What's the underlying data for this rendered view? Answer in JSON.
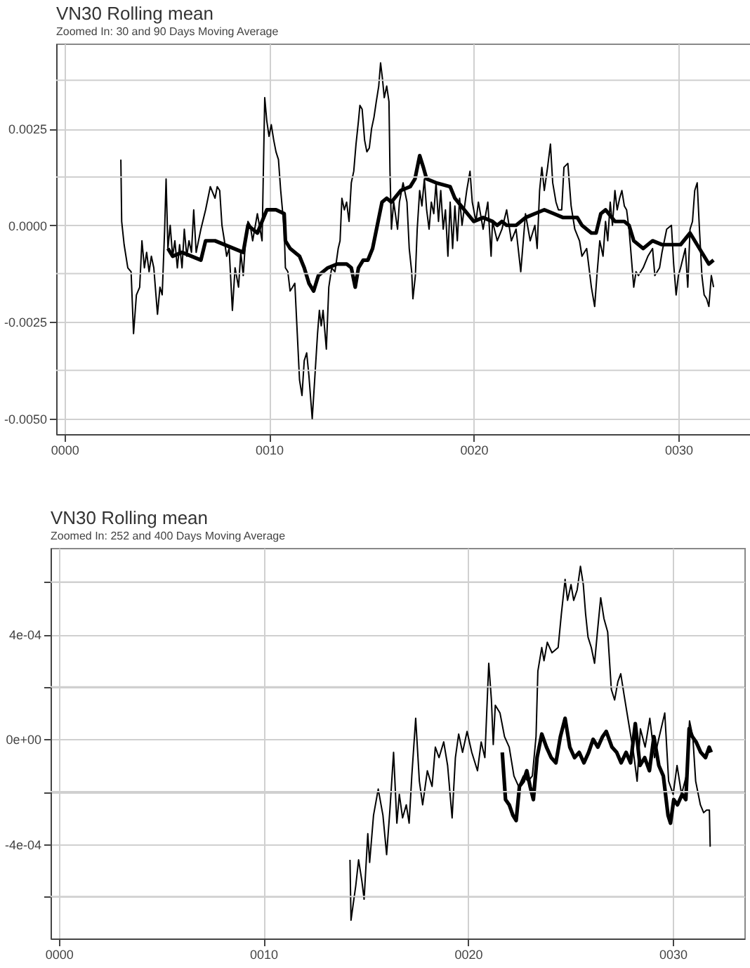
{
  "chart_data": [
    {
      "type": "line",
      "title": "VN30 Rolling mean",
      "subtitle": "Zoomed In: 30 and 90 Days Moving Average",
      "xlim": [
        -0.4,
        33.5
      ],
      "xticks": [
        {
          "value": 0,
          "label": "0000"
        },
        {
          "value": 10,
          "label": "0010"
        },
        {
          "value": 20,
          "label": "0020"
        },
        {
          "value": 30,
          "label": "0030"
        }
      ],
      "ylim": [
        -0.0054,
        0.0047
      ],
      "yticks": [
        {
          "value": -0.005,
          "label": "-0.0050"
        },
        {
          "value": -0.00375,
          "label": null
        },
        {
          "value": -0.0025,
          "label": "-0.0025"
        },
        {
          "value": -0.00125,
          "label": null
        },
        {
          "value": 0,
          "label": "0.0000"
        },
        {
          "value": 0.00125,
          "label": null
        },
        {
          "value": 0.0025,
          "label": "0.0025"
        },
        {
          "value": 0.00375,
          "label": null
        }
      ],
      "grid": true,
      "series": [
        {
          "color": "#000000",
          "x": [
            2.76,
            2.8,
            2.92,
            3.1,
            3.26,
            3.38,
            3.52,
            3.68,
            3.79,
            3.91,
            4.02,
            4.14,
            4.25,
            4.37,
            4.55,
            4.67,
            4.78,
            4.9,
            4.97,
            5.06,
            5.17,
            5.29,
            5.4,
            5.52,
            5.63,
            5.75,
            5.86,
            5.98,
            6.09,
            6.21,
            6.32,
            6.44,
            6.67,
            6.9,
            7.13,
            7.36,
            7.47,
            7.59,
            7.7,
            7.82,
            7.93,
            8.05,
            8.21,
            8.34,
            8.51,
            8.62,
            8.74,
            8.85,
            8.97,
            9.08,
            9.2,
            9.43,
            9.66,
            9.79,
            9.89,
            10.0,
            10.11,
            10.23,
            10.34,
            10.46,
            10.57,
            10.74,
            10.8,
            10.92,
            11.03,
            11.15,
            11.26,
            11.38,
            11.49,
            11.61,
            11.72,
            11.84,
            11.95,
            12.11,
            12.23,
            12.37,
            12.46,
            12.55,
            12.64,
            12.8,
            12.92,
            13.06,
            13.22,
            13.38,
            13.47,
            13.56,
            13.68,
            13.79,
            13.91,
            14.02,
            14.14,
            14.25,
            14.37,
            14.44,
            14.55,
            14.67,
            14.78,
            14.9,
            15.01,
            15.13,
            15.24,
            15.36,
            15.45,
            15.54,
            15.63,
            15.75,
            15.86,
            15.91,
            15.98,
            16.09,
            16.28,
            16.37,
            16.55,
            16.74,
            16.85,
            16.97,
            17.03,
            17.15,
            17.24,
            17.36,
            17.47,
            17.59,
            17.7,
            17.82,
            17.93,
            18.05,
            18.16,
            18.28,
            18.39,
            18.51,
            18.62,
            18.74,
            18.85,
            18.97,
            19.08,
            19.2,
            19.31,
            19.43,
            19.66,
            19.82,
            19.93,
            20.11,
            20.23,
            20.46,
            20.69,
            20.85,
            20.92,
            21.15,
            21.38,
            21.61,
            21.84,
            22.07,
            22.3,
            22.53,
            22.76,
            22.99,
            23.1,
            23.22,
            23.33,
            23.45,
            23.61,
            23.75,
            23.86,
            24.02,
            24.14,
            24.3,
            24.41,
            24.6,
            24.76,
            24.94,
            25.17,
            25.29,
            25.52,
            25.75,
            25.91,
            26.02,
            26.16,
            26.32,
            26.44,
            26.55,
            26.67,
            26.78,
            26.9,
            27.01,
            27.13,
            27.24,
            27.36,
            27.47,
            27.59,
            27.82,
            27.93,
            28.05,
            28.28,
            28.51,
            28.74,
            28.85,
            29.08,
            29.2,
            29.43,
            29.66,
            29.77,
            29.89,
            30.0,
            30.11,
            30.34,
            30.46,
            30.57,
            30.69,
            30.8,
            30.92,
            31.03,
            31.15,
            31.26,
            31.38,
            31.49,
            31.61,
            31.72
          ],
          "values": [
            0.0017,
            0.0001,
            -0.0005,
            -0.0011,
            -0.0012,
            -0.0028,
            -0.0018,
            -0.0016,
            -0.0004,
            -0.0011,
            -0.0007,
            -0.0012,
            -0.0008,
            -0.0011,
            -0.0023,
            -0.0016,
            -0.0018,
            -0.0001,
            0.0012,
            -0.0006,
            0.0,
            -0.0008,
            -0.0004,
            -0.0011,
            -0.0005,
            -0.0011,
            -0.0001,
            -0.0008,
            -0.0004,
            -0.0007,
            0.0004,
            -0.0007,
            -0.0001,
            0.0004,
            0.001,
            0.0007,
            0.001,
            0.0009,
            0.0,
            -0.0004,
            -0.0008,
            -0.0006,
            -0.0022,
            -0.0011,
            -0.0016,
            -0.0007,
            -0.0013,
            -0.0004,
            0.0001,
            0.0,
            -0.0004,
            0.0003,
            -0.0004,
            0.0033,
            0.0027,
            0.0023,
            0.0026,
            0.0022,
            0.0019,
            0.0017,
            0.0009,
            -0.0001,
            -0.0011,
            -0.0012,
            -0.0017,
            -0.0016,
            -0.0015,
            -0.0028,
            -0.004,
            -0.0044,
            -0.0035,
            -0.0033,
            -0.0039,
            -0.005,
            -0.004,
            -0.0028,
            -0.0022,
            -0.0026,
            -0.0022,
            -0.0032,
            -0.0016,
            -0.0011,
            -0.0012,
            -0.0006,
            -0.0004,
            0.0007,
            0.0004,
            0.0006,
            0.0001,
            0.0011,
            0.0014,
            0.0021,
            0.0027,
            0.0031,
            0.003,
            0.0022,
            0.0019,
            0.002,
            0.0025,
            0.0028,
            0.0032,
            0.0036,
            0.0042,
            0.0038,
            0.0033,
            0.0036,
            0.0032,
            0.0014,
            -0.0001,
            0.0006,
            -0.0001,
            0.0006,
            0.0011,
            0.0006,
            -0.0006,
            -0.0012,
            -0.0019,
            -0.0013,
            -0.0001,
            0.0009,
            0.0005,
            0.0012,
            0.0004,
            -0.0001,
            0.0006,
            0.0003,
            0.0011,
            0.0001,
            0.0009,
            -0.0001,
            0.0004,
            -0.0008,
            0.0006,
            -0.0006,
            0.0005,
            -0.0004,
            0.0007,
            0.0,
            0.0009,
            0.0014,
            0.0006,
            0.0001,
            0.0006,
            -0.0001,
            0.0006,
            -0.0008,
            0.0001,
            -0.0004,
            -0.0001,
            0.0004,
            -0.0004,
            -0.0001,
            -0.0012,
            0.0003,
            -0.0004,
            0.0,
            -0.0006,
            0.0009,
            0.0015,
            0.0009,
            0.0015,
            0.0021,
            0.0011,
            0.0006,
            0.0004,
            0.0004,
            0.0015,
            0.0016,
            0.0005,
            -0.0001,
            -0.0004,
            -0.0008,
            -0.0006,
            -0.0016,
            -0.0021,
            -0.0013,
            -0.0004,
            -0.0008,
            0.0001,
            -0.0004,
            0.0006,
            0.0,
            0.0009,
            0.0004,
            0.0007,
            0.0009,
            0.0005,
            0.0004,
            -0.0001,
            -0.0016,
            -0.0012,
            -0.0013,
            -0.0011,
            -0.0008,
            -0.0006,
            -0.0013,
            -0.0011,
            -0.0007,
            -0.0001,
            0.0,
            -0.001,
            -0.0018,
            -0.0013,
            -0.0011,
            -0.0006,
            -0.0016,
            -0.0001,
            0.0001,
            0.0009,
            0.0011,
            -0.0001,
            -0.0013,
            -0.0018,
            -0.0019,
            -0.0021,
            -0.0013,
            -0.0016
          ]
        },
        {
          "color": "#000000",
          "x": [
            5.06,
            5.29,
            5.75,
            6.21,
            6.67,
            6.9,
            7.36,
            7.82,
            8.28,
            8.74,
            8.97,
            9.43,
            9.66,
            9.89,
            10.34,
            10.74,
            10.8,
            11.03,
            11.49,
            11.72,
            11.95,
            12.18,
            12.41,
            12.87,
            13.33,
            13.79,
            14.02,
            14.21,
            14.37,
            14.6,
            14.83,
            15.06,
            15.29,
            15.52,
            15.75,
            15.98,
            16.44,
            16.9,
            17.13,
            17.36,
            17.54,
            17.7,
            18.16,
            18.85,
            19.08,
            19.54,
            20.0,
            20.46,
            20.92,
            21.15,
            21.38,
            21.61,
            22.07,
            22.53,
            22.99,
            23.45,
            23.91,
            24.37,
            25.06,
            25.29,
            25.75,
            25.98,
            26.21,
            26.44,
            26.9,
            27.36,
            27.59,
            27.82,
            28.28,
            28.74,
            29.2,
            29.66,
            30.11,
            30.57,
            31.03,
            31.49,
            31.72
          ],
          "values": [
            -0.0006,
            -0.0008,
            -0.0007,
            -0.0008,
            -0.0009,
            -0.0004,
            -0.0004,
            -0.0005,
            -0.0006,
            -0.0007,
            0.0,
            -0.0002,
            0.0001,
            0.0004,
            0.0004,
            0.0003,
            -0.0004,
            -0.0006,
            -0.0008,
            -0.0011,
            -0.0015,
            -0.0017,
            -0.0013,
            -0.0011,
            -0.001,
            -0.001,
            -0.0011,
            -0.0016,
            -0.0011,
            -0.0009,
            -0.0009,
            -0.0006,
            0.0,
            0.0006,
            0.0007,
            0.0006,
            0.0009,
            0.001,
            0.0012,
            0.0018,
            0.0015,
            0.0012,
            0.0011,
            0.001,
            0.0007,
            0.0004,
            0.0001,
            0.0002,
            0.0001,
            0.0,
            0.0001,
            0.0,
            0.0,
            0.0002,
            0.0003,
            0.0004,
            0.0003,
            0.0002,
            0.0002,
            0.0,
            -0.0002,
            -0.0002,
            0.0003,
            0.0004,
            0.0001,
            0.0001,
            0.0,
            -0.0004,
            -0.0006,
            -0.0004,
            -0.0005,
            -0.0005,
            -0.0005,
            -0.0002,
            -0.0006,
            -0.001,
            -0.0009
          ]
        }
      ]
    },
    {
      "type": "line",
      "title": "VN30 Rolling mean",
      "subtitle": "Zoomed In: 252 and 400 Days Moving Average",
      "xlim": [
        -0.4,
        33.5
      ],
      "xticks": [
        {
          "value": 0,
          "label": "0000"
        },
        {
          "value": 10,
          "label": "0010"
        },
        {
          "value": 20,
          "label": "0020"
        },
        {
          "value": 30,
          "label": "0030"
        }
      ],
      "ylim": [
        -0.00076,
        0.00073
      ],
      "yticks": [
        {
          "value": -0.0006,
          "label": null
        },
        {
          "value": -0.0004,
          "label": "-4e-04"
        },
        {
          "value": -0.0002,
          "label": null
        },
        {
          "value": 0,
          "label": "0e+00"
        },
        {
          "value": 0.0002,
          "label": null
        },
        {
          "value": 0.0004,
          "label": "4e-04"
        },
        {
          "value": 0.0006,
          "label": null
        }
      ],
      "grid": true,
      "series": [
        {
          "color": "#000000",
          "x": [
            14.23,
            14.28,
            14.42,
            14.51,
            14.65,
            14.81,
            14.92,
            15.1,
            15.19,
            15.38,
            15.61,
            15.84,
            16.02,
            16.18,
            16.36,
            16.52,
            16.64,
            16.8,
            16.98,
            17.12,
            17.25,
            17.44,
            17.62,
            17.78,
            18.01,
            18.24,
            18.4,
            18.58,
            18.81,
            19.0,
            19.22,
            19.38,
            19.54,
            19.73,
            19.95,
            20.18,
            20.46,
            20.64,
            20.82,
            21.01,
            21.14,
            21.23,
            21.33,
            21.56,
            21.78,
            22.01,
            22.24,
            22.47,
            22.7,
            22.93,
            23.14,
            23.32,
            23.41,
            23.6,
            23.71,
            23.87,
            24.1,
            24.4,
            24.56,
            24.74,
            24.86,
            25.03,
            25.16,
            25.33,
            25.49,
            25.63,
            25.74,
            25.86,
            26.02,
            26.18,
            26.32,
            26.48,
            26.64,
            26.82,
            27.0,
            27.16,
            27.32,
            27.46,
            27.62,
            27.85,
            28.08,
            28.26,
            28.42,
            28.65,
            28.88,
            29.11,
            29.34,
            29.61,
            29.8,
            30.02,
            30.21,
            30.43,
            30.66,
            30.82,
            30.98,
            31.12,
            31.35,
            31.51,
            31.65,
            31.79,
            31.83
          ],
          "values": [
            -0.00046,
            -0.00069,
            -0.00061,
            -0.00056,
            -0.00046,
            -0.00054,
            -0.00061,
            -0.00036,
            -0.00047,
            -0.00029,
            -0.00019,
            -0.00029,
            -0.00044,
            -0.00027,
            -5e-05,
            -0.00032,
            -0.00021,
            -0.0003,
            -0.00025,
            -0.00032,
            -0.00014,
            8e-05,
            -0.00016,
            -0.00025,
            -0.00012,
            -0.00018,
            -3e-05,
            -7e-05,
            -1e-05,
            -0.0001,
            -0.0003,
            -7e-05,
            2e-05,
            -5e-05,
            3e-05,
            -5e-05,
            -0.00012,
            -1e-05,
            -7e-05,
            0.00029,
            0.00015,
            -2e-05,
            0.00013,
            0.0001,
            1e-05,
            -3e-05,
            -0.00014,
            -0.00018,
            -0.00014,
            -0.00016,
            -0.00014,
            1e-05,
            0.00026,
            0.00035,
            0.0003,
            0.00037,
            0.00033,
            0.00035,
            0.00048,
            0.00061,
            0.00053,
            0.00059,
            0.00053,
            0.00057,
            0.00066,
            0.00059,
            0.00048,
            0.00039,
            0.00035,
            0.00029,
            0.00041,
            0.00054,
            0.00046,
            0.00041,
            0.00019,
            0.00015,
            0.00022,
            0.00025,
            0.00017,
            6e-05,
            -5e-05,
            -0.00016,
            4e-05,
            -3e-05,
            8e-05,
            -7e-05,
            1e-05,
            0.0001,
            -0.00016,
            -0.00021,
            -0.0001,
            -0.00021,
            -0.00014,
            7e-05,
            1e-05,
            -0.00016,
            -0.00025,
            -0.00028,
            -0.00027,
            -0.00027,
            -0.00041
          ]
        },
        {
          "color": "#000000",
          "x": [
            21.67,
            21.83,
            22.01,
            22.19,
            22.35,
            22.51,
            22.7,
            22.87,
            23.03,
            23.19,
            23.37,
            23.6,
            23.83,
            24.06,
            24.29,
            24.51,
            24.74,
            24.97,
            25.2,
            25.43,
            25.66,
            25.89,
            26.11,
            26.34,
            26.57,
            26.75,
            27.03,
            27.26,
            27.48,
            27.72,
            27.94,
            28.17,
            28.4,
            28.63,
            28.86,
            29.08,
            29.32,
            29.54,
            29.77,
            29.89,
            30.05,
            30.23,
            30.46,
            30.64,
            30.8,
            30.96,
            31.14,
            31.37,
            31.6,
            31.78,
            31.88
          ],
          "values": [
            -5e-05,
            -0.00023,
            -0.00025,
            -0.00029,
            -0.00031,
            -0.00018,
            -0.00016,
            -0.00012,
            -0.00018,
            -0.00023,
            -7e-05,
            2e-05,
            -3e-05,
            -7e-05,
            -9e-05,
            1e-05,
            8e-05,
            -3e-05,
            -7e-05,
            -5e-05,
            -9e-05,
            -5e-05,
            0.0,
            -3e-05,
            1e-05,
            3e-05,
            -3e-05,
            -5e-05,
            -9e-05,
            -5e-05,
            -9e-05,
            6e-05,
            -0.0001,
            -7e-05,
            -0.00012,
            1e-05,
            -0.0001,
            -0.00014,
            -0.00029,
            -0.00032,
            -0.00023,
            -0.00025,
            -0.00021,
            -0.00023,
            4e-05,
            1e-05,
            -1e-05,
            -5e-05,
            -7e-05,
            -3e-05,
            -5e-05
          ]
        }
      ]
    }
  ]
}
